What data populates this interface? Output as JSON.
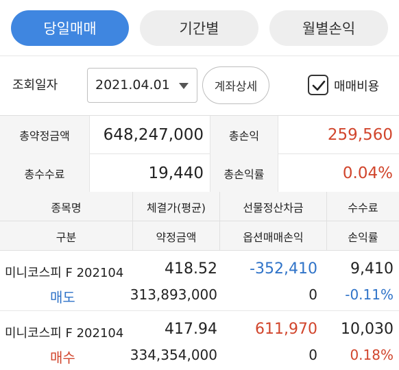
{
  "tabs": [
    {
      "label": "당일매매",
      "active": true
    },
    {
      "label": "기간별",
      "active": false
    },
    {
      "label": "월별손익",
      "active": false
    }
  ],
  "filter": {
    "date_label": "조회일자",
    "date_value": "2021.04.01",
    "detail_button": "계좌상세",
    "fee_checkbox_label": "매매비용",
    "fee_checkbox_checked": true
  },
  "summary": {
    "total_contract_label": "총약정금액",
    "total_contract_value": "648,247,000",
    "total_pl_label": "총손익",
    "total_pl_value": "259,560",
    "total_fee_label": "총수수료",
    "total_fee_value": "19,440",
    "total_pl_rate_label": "총손익률",
    "total_pl_rate_value": "0.04%"
  },
  "table": {
    "headers_row1": [
      "종목명",
      "체결가(평균)",
      "선물정산차금",
      "수수료"
    ],
    "headers_row2": [
      "구분",
      "약정금액",
      "옵션매매손익",
      "손익률"
    ],
    "rows": [
      {
        "name": "미니코스피 F 202104",
        "side": "매도",
        "price": "418.52",
        "futures_settlement": "-352,410",
        "fee": "9,410",
        "contract_amount": "313,893,000",
        "option_pl": "0",
        "pl_rate": "-0.11%"
      },
      {
        "name": "미니코스피 F 202104",
        "side": "매수",
        "price": "417.94",
        "futures_settlement": "611,970",
        "fee": "10,030",
        "contract_amount": "334,354,000",
        "option_pl": "0",
        "pl_rate": "0.18%"
      }
    ]
  },
  "colors": {
    "accent": "#3f86e0",
    "positive": "#d1452c",
    "negative": "#2f73c8",
    "label_bg": "#f5f5f5"
  }
}
